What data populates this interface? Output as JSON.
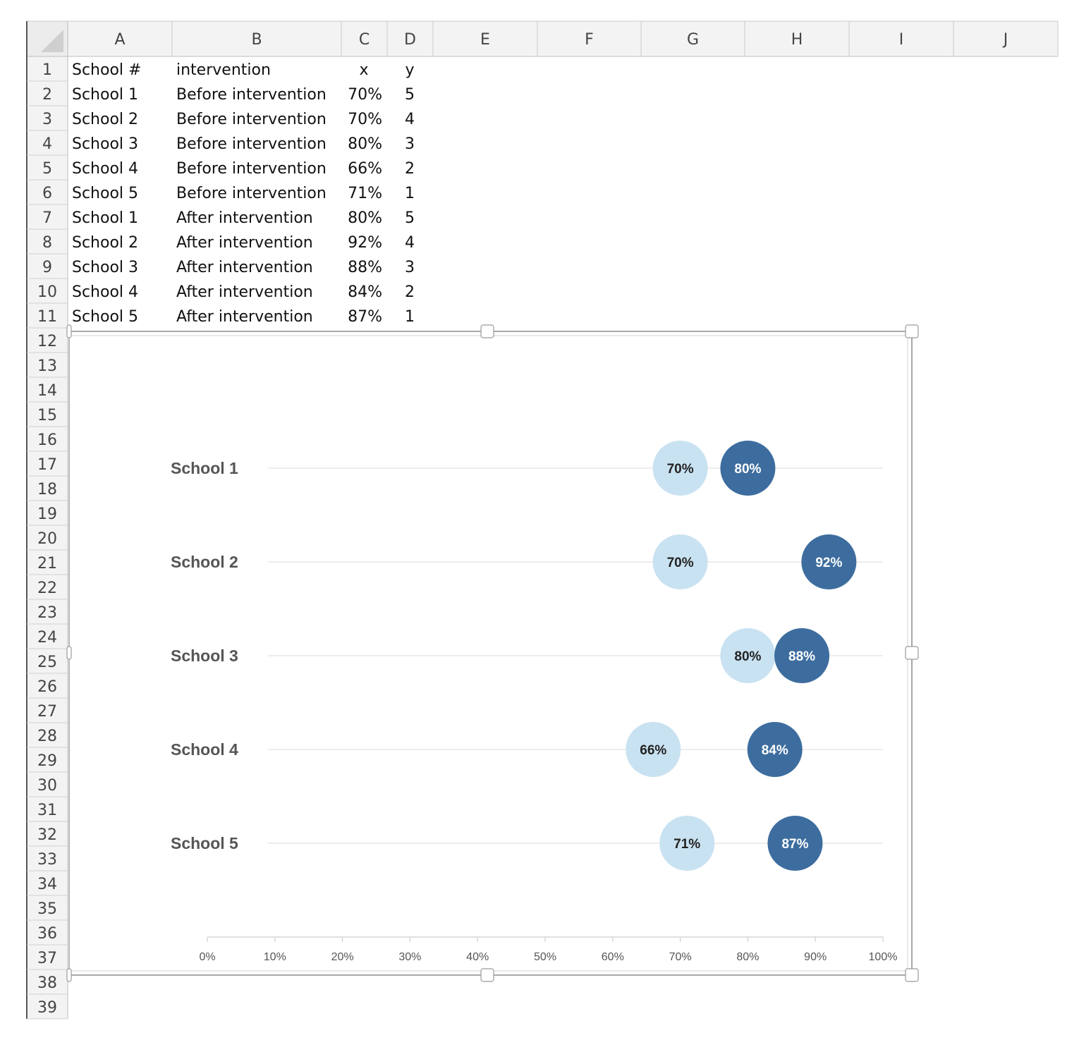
{
  "spreadsheet": {
    "column_headers": [
      "A",
      "B",
      "C",
      "D",
      "E",
      "F",
      "G",
      "H",
      "I",
      "J"
    ],
    "row_numbers": [
      "1",
      "2",
      "3",
      "4",
      "5",
      "6",
      "7",
      "8",
      "9",
      "10",
      "11",
      "12",
      "13",
      "14",
      "15",
      "16",
      "17",
      "18",
      "19",
      "20",
      "21",
      "22",
      "23",
      "24",
      "25",
      "26",
      "27",
      "28",
      "29",
      "30",
      "31",
      "32",
      "33",
      "34",
      "35",
      "36",
      "37",
      "38",
      "39"
    ],
    "header_row": [
      "School #",
      "intervention",
      "x",
      "y"
    ],
    "rows": [
      [
        "School 1",
        "Before intervention",
        "70%",
        "5"
      ],
      [
        "School 2",
        "Before intervention",
        "70%",
        "4"
      ],
      [
        "School 3",
        "Before intervention",
        "80%",
        "3"
      ],
      [
        "School 4",
        "Before intervention",
        "66%",
        "2"
      ],
      [
        "School 5",
        "Before intervention",
        "71%",
        "1"
      ],
      [
        "School 1",
        "After intervention",
        "80%",
        "5"
      ],
      [
        "School 2",
        "After intervention",
        "92%",
        "4"
      ],
      [
        "School 3",
        "After intervention",
        "88%",
        "3"
      ],
      [
        "School 4",
        "After intervention",
        "84%",
        "2"
      ],
      [
        "School 5",
        "After intervention",
        "87%",
        "1"
      ]
    ]
  },
  "chart_data": {
    "type": "scatter",
    "title": "",
    "xlabel": "",
    "ylabel": "",
    "xlim": [
      0,
      100
    ],
    "ylim": [
      0.5,
      5.5
    ],
    "x_ticks": [
      0,
      10,
      20,
      30,
      40,
      50,
      60,
      70,
      80,
      90,
      100
    ],
    "x_tick_labels": [
      "0%",
      "10%",
      "20%",
      "30%",
      "40%",
      "50%",
      "60%",
      "70%",
      "80%",
      "90%",
      "100%"
    ],
    "category_labels": [
      {
        "label": "School 1",
        "y": 5
      },
      {
        "label": "School 2",
        "y": 4
      },
      {
        "label": "School 3",
        "y": 3
      },
      {
        "label": "School 4",
        "y": 2
      },
      {
        "label": "School 5",
        "y": 1
      }
    ],
    "grid": "horizontal lines at each school",
    "legend": "none",
    "series": [
      {
        "color": "#c9e2f2",
        "label_color": "#222222",
        "points": [
          {
            "x": 70,
            "y": 5,
            "label": "70%"
          },
          {
            "x": 70,
            "y": 4,
            "label": "70%"
          },
          {
            "x": 80,
            "y": 3,
            "label": "80%"
          },
          {
            "x": 66,
            "y": 2,
            "label": "66%"
          },
          {
            "x": 71,
            "y": 1,
            "label": "71%"
          }
        ]
      },
      {
        "color": "#3d6d9e",
        "label_color": "#ffffff",
        "points": [
          {
            "x": 80,
            "y": 5,
            "label": "80%"
          },
          {
            "x": 92,
            "y": 4,
            "label": "92%"
          },
          {
            "x": 88,
            "y": 3,
            "label": "88%"
          },
          {
            "x": 84,
            "y": 2,
            "label": "84%"
          },
          {
            "x": 87,
            "y": 1,
            "label": "87%"
          }
        ]
      }
    ]
  }
}
